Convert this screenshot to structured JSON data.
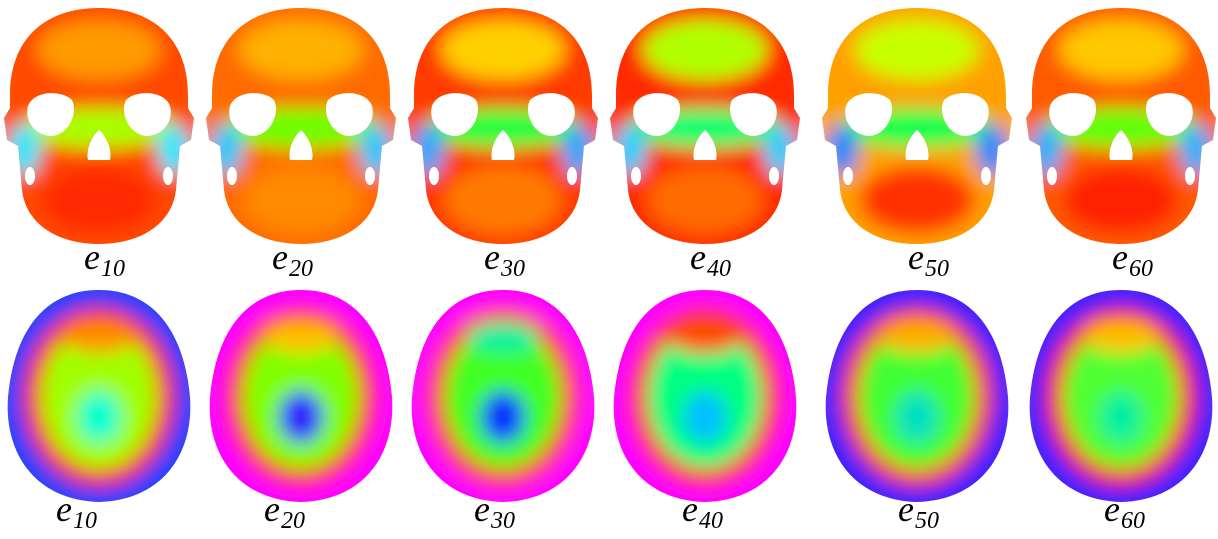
{
  "rows": [
    {
      "view": "front",
      "panels": [
        {
          "base": "e",
          "sub": "10",
          "colors": [
            "#ff4a00",
            "#ff9a00",
            "#a8ff00",
            "#00e8ff",
            "#ff2a00"
          ]
        },
        {
          "base": "e",
          "sub": "20",
          "colors": [
            "#ff6a00",
            "#ffb000",
            "#6cff00",
            "#00c8ff",
            "#ff8a00"
          ]
        },
        {
          "base": "e",
          "sub": "30",
          "colors": [
            "#ff3a00",
            "#ffd000",
            "#20ff40",
            "#00a8ff",
            "#ff7a00"
          ]
        },
        {
          "base": "e",
          "sub": "40",
          "colors": [
            "#ff2a00",
            "#b0ff00",
            "#00ff70",
            "#00d0ff",
            "#ff6a00"
          ]
        },
        {
          "base": "e",
          "sub": "50",
          "colors": [
            "#ffa000",
            "#c8ff00",
            "#00ff50",
            "#0088ff",
            "#ff3000"
          ]
        },
        {
          "base": "e",
          "sub": "60",
          "colors": [
            "#ff5a00",
            "#ffc800",
            "#60ff10",
            "#00b0ff",
            "#ff2000"
          ]
        }
      ]
    },
    {
      "view": "top",
      "panels": [
        {
          "base": "e",
          "sub": "10",
          "colors": [
            "#2040ff",
            "#ff2a00",
            "#a0ff00",
            "#00ffd0",
            "#ff9000"
          ]
        },
        {
          "base": "e",
          "sub": "20",
          "colors": [
            "#ff00ff",
            "#ff2a00",
            "#80ff00",
            "#3020ff",
            "#ffc000"
          ]
        },
        {
          "base": "e",
          "sub": "30",
          "colors": [
            "#ff00ff",
            "#ff3a00",
            "#40ff20",
            "#1030ff",
            "#00f0a0"
          ]
        },
        {
          "base": "e",
          "sub": "40",
          "colors": [
            "#ff00ff",
            "#ff2a00",
            "#00ff80",
            "#00c0ff",
            "#ff5000"
          ]
        },
        {
          "base": "e",
          "sub": "50",
          "colors": [
            "#4020ff",
            "#ff4000",
            "#40ff30",
            "#00e0c0",
            "#ffb000"
          ]
        },
        {
          "base": "e",
          "sub": "60",
          "colors": [
            "#4020ff",
            "#ff2000",
            "#50ff30",
            "#00f0a0",
            "#ffc000"
          ]
        }
      ]
    }
  ]
}
